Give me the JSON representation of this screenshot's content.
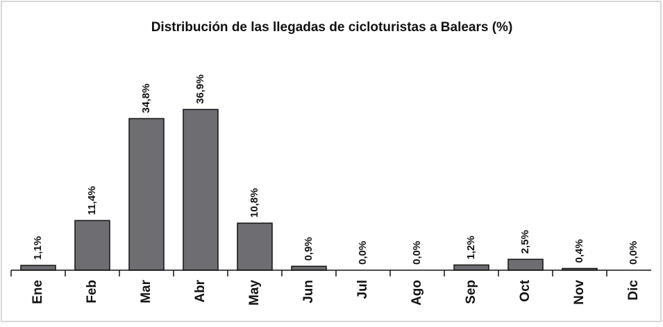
{
  "chart_data": {
    "type": "bar",
    "title": "Distribución de las llegadas de cicloturistas a Balears (%)",
    "categories": [
      "Ene",
      "Feb",
      "Mar",
      "Abr",
      "May",
      "Jun",
      "Jul",
      "Ago",
      "Sep",
      "Oct",
      "Nov",
      "Dic"
    ],
    "values": [
      1.1,
      11.4,
      34.8,
      36.9,
      10.8,
      0.9,
      0.0,
      0.0,
      1.2,
      2.5,
      0.4,
      0.0
    ],
    "value_labels": [
      "1,1%",
      "11,4%",
      "34,8%",
      "36,9%",
      "10,8%",
      "0,9%",
      "0,0%",
      "0,0%",
      "1,2%",
      "2,5%",
      "0,4%",
      "0,0%"
    ],
    "color": "#6e6e72"
  }
}
